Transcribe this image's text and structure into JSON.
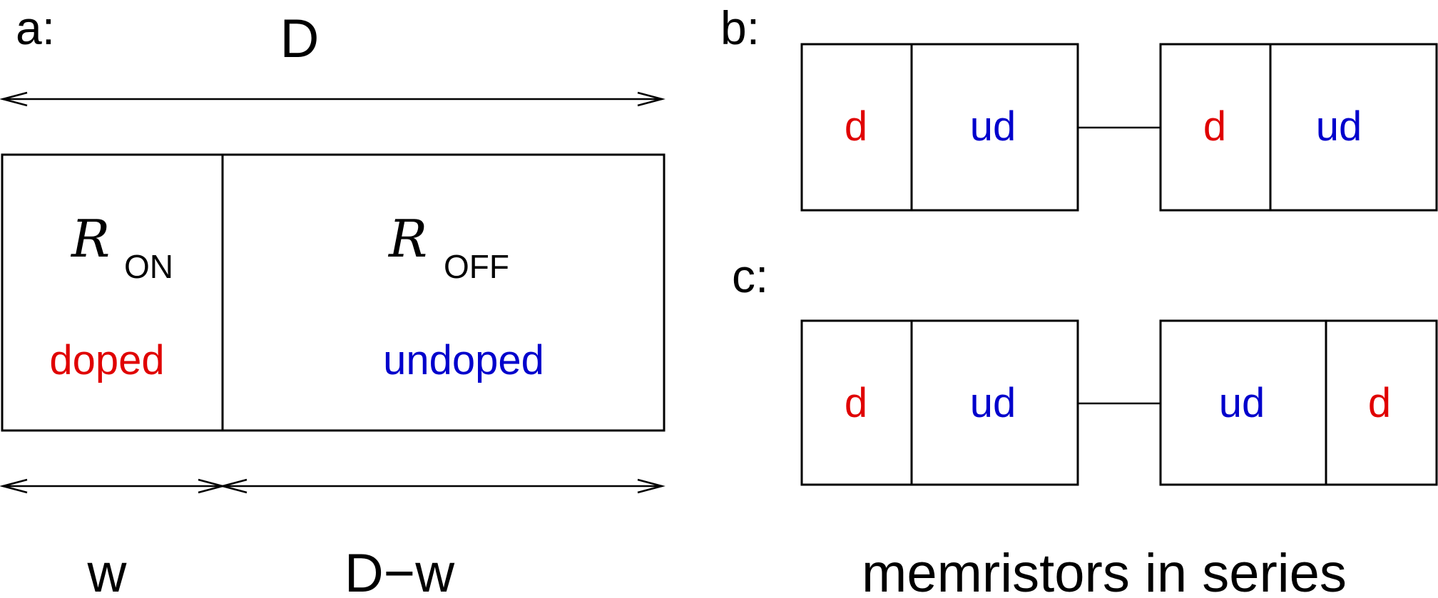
{
  "colors": {
    "line": "#000000",
    "doped": "#e00000",
    "undoped": "#0000cc"
  },
  "panel_a": {
    "label": "a:",
    "length_label": "D",
    "r_symbol": "R",
    "r_on_sub": "ON",
    "r_off_sub": "OFF",
    "doped_label": "doped",
    "undoped_label": "undoped",
    "w_label": "w",
    "dw_label": "D−w"
  },
  "panel_b": {
    "label": "b:",
    "left": {
      "first": "d",
      "second": "ud"
    },
    "right": {
      "first": "d",
      "second": "ud"
    }
  },
  "panel_c": {
    "label": "c:",
    "left": {
      "first": "d",
      "second": "ud"
    },
    "right": {
      "first": "ud",
      "second": "d"
    }
  },
  "caption": "memristors in series"
}
